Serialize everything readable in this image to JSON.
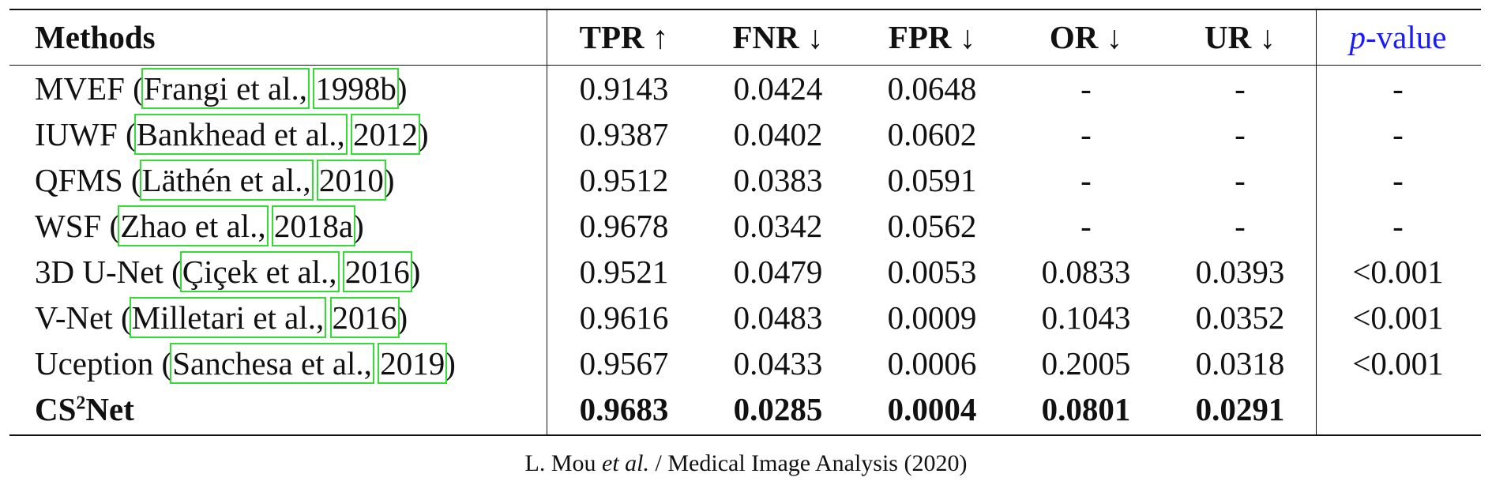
{
  "table": {
    "header": [
      [
        {
          "text": "Methods"
        }
      ],
      [
        {
          "text": "TPR ↑"
        }
      ],
      [
        {
          "text": "FNR ↓"
        }
      ],
      [
        {
          "text": "FPR ↓"
        }
      ],
      [
        {
          "text": "OR ↓"
        }
      ],
      [
        {
          "text": "UR ↓"
        }
      ],
      [
        {
          "text": "p",
          "italic": true
        },
        {
          "text": "-value"
        }
      ]
    ],
    "rows": [
      {
        "method": [
          {
            "text": "MVEF ("
          },
          {
            "text": "Frangi et al.,",
            "link": true
          },
          {
            "text": " "
          },
          {
            "text": "1998b",
            "link": true
          },
          {
            "text": ")"
          }
        ],
        "values": [
          "0.9143",
          "0.0424",
          "0.0648",
          "-",
          "-"
        ],
        "p_value": "-"
      },
      {
        "method": [
          {
            "text": "IUWF ("
          },
          {
            "text": "Bankhead et al.,",
            "link": true
          },
          {
            "text": " "
          },
          {
            "text": "2012",
            "link": true
          },
          {
            "text": ")"
          }
        ],
        "values": [
          "0.9387",
          "0.0402",
          "0.0602",
          "-",
          "-"
        ],
        "p_value": "-"
      },
      {
        "method": [
          {
            "text": "QFMS ("
          },
          {
            "text": "Läthén et al.,",
            "link": true
          },
          {
            "text": " "
          },
          {
            "text": "2010",
            "link": true
          },
          {
            "text": ")"
          }
        ],
        "values": [
          "0.9512",
          "0.0383",
          "0.0591",
          "-",
          "-"
        ],
        "p_value": "-"
      },
      {
        "method": [
          {
            "text": "WSF ("
          },
          {
            "text": "Zhao et al.,",
            "link": true
          },
          {
            "text": " "
          },
          {
            "text": "2018a",
            "link": true
          },
          {
            "text": ")"
          }
        ],
        "values": [
          "0.9678",
          "0.0342",
          "0.0562",
          "-",
          "-"
        ],
        "p_value": "-"
      },
      {
        "method": [
          {
            "text": "3D U-Net ("
          },
          {
            "text": "Çiçek et al.,",
            "link": true
          },
          {
            "text": " "
          },
          {
            "text": "2016",
            "link": true
          },
          {
            "text": ")"
          }
        ],
        "values": [
          "0.9521",
          "0.0479",
          "0.0053",
          "0.0833",
          "0.0393"
        ],
        "p_value": "<0.001"
      },
      {
        "method": [
          {
            "text": "V-Net ("
          },
          {
            "text": "Milletari et al.,",
            "link": true
          },
          {
            "text": " "
          },
          {
            "text": "2016",
            "link": true
          },
          {
            "text": ")"
          }
        ],
        "values": [
          "0.9616",
          "0.0483",
          "0.0009",
          "0.1043",
          "0.0352"
        ],
        "p_value": "<0.001"
      },
      {
        "method": [
          {
            "text": "Uception ("
          },
          {
            "text": "Sanchesa et al.,",
            "link": true
          },
          {
            "text": " "
          },
          {
            "text": "2019",
            "link": true
          },
          {
            "text": ")"
          }
        ],
        "values": [
          "0.9567",
          "0.0433",
          "0.0006",
          "0.2005",
          "0.0318"
        ],
        "p_value": "<0.001"
      },
      {
        "method": [
          {
            "text": "CS"
          },
          {
            "text": "2",
            "sup": true
          },
          {
            "text": "Net"
          }
        ],
        "values": [
          "0.9683",
          "0.0285",
          "0.0004",
          "0.0801",
          "0.0291"
        ],
        "bold": true
      }
    ]
  },
  "footer": [
    {
      "text": "L. Mou "
    },
    {
      "text": "et al.",
      "italic": true
    },
    {
      "text": " / Medical Image Analysis (2020)"
    }
  ]
}
